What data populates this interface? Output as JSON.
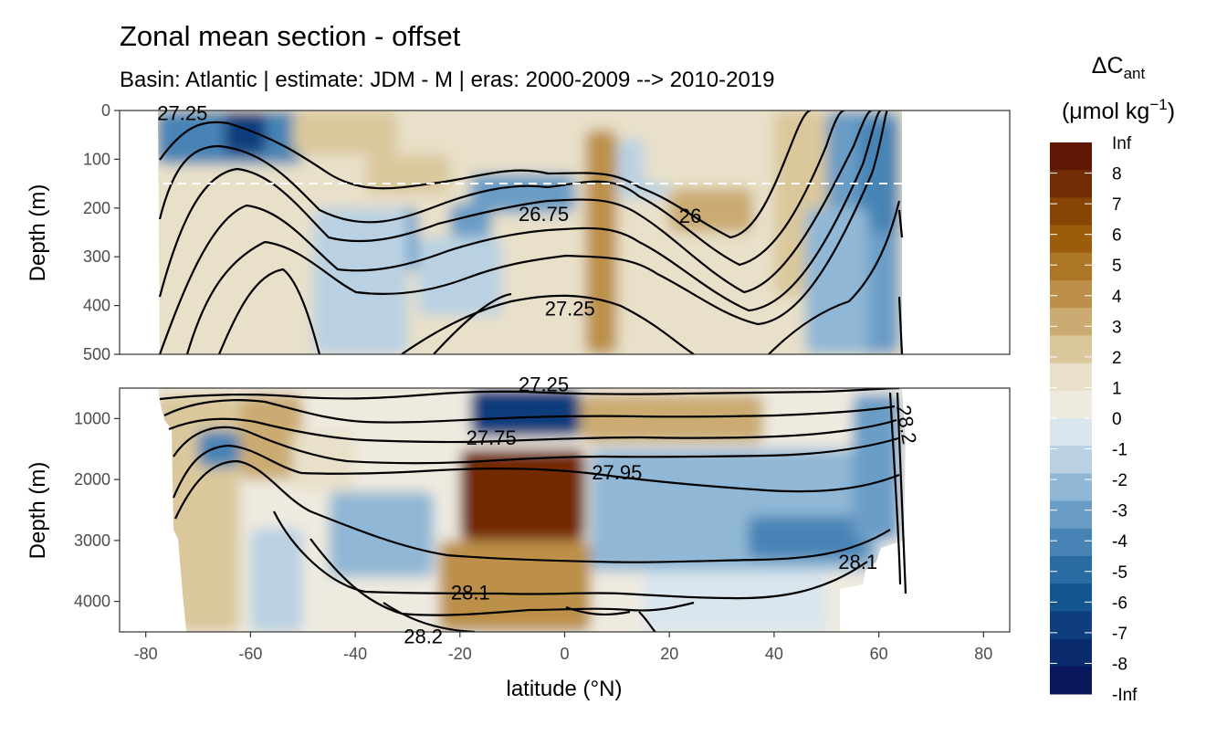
{
  "chart_data": {
    "type": "heatmap",
    "title": "Zonal mean section - offset",
    "subtitle": "Basin: Atlantic | estimate: JDM - M | eras: 2000-2009 --> 2010-2019",
    "xlabel": "latitude (°N)",
    "ylabel": "Depth (m)",
    "xlim": [
      -85,
      85
    ],
    "x_ticks": [
      -80,
      -60,
      -40,
      -20,
      0,
      20,
      40,
      60,
      80
    ],
    "x_tick_labels": [
      "-80",
      "-60",
      "-40",
      "-20",
      "0",
      "20",
      "40",
      "60",
      "80"
    ],
    "panels": [
      {
        "name": "upper",
        "ylim": [
          0,
          500
        ],
        "y_ticks": [
          0,
          100,
          200,
          300,
          400,
          500
        ],
        "y_tick_labels": [
          "0",
          "100",
          "200",
          "300",
          "400",
          "500"
        ],
        "reference_depth": 150,
        "isopycnal_labels": [
          {
            "text": "27.25",
            "lat": -73,
            "depth": 5
          },
          {
            "text": "26.75",
            "lat": -4,
            "depth": 212
          },
          {
            "text": "26",
            "lat": 24,
            "depth": 215
          },
          {
            "text": "27.25",
            "lat": 1,
            "depth": 405
          }
        ]
      },
      {
        "name": "lower",
        "ylim": [
          500,
          4500
        ],
        "y_ticks": [
          1000,
          2000,
          3000,
          4000
        ],
        "y_tick_labels": [
          "1000",
          "2000",
          "3000",
          "4000"
        ],
        "isopycnal_labels": [
          {
            "text": "27.25",
            "lat": -4,
            "depth": 430
          },
          {
            "text": "27.75",
            "lat": -14,
            "depth": 1310
          },
          {
            "text": "27.95",
            "lat": 10,
            "depth": 1880
          },
          {
            "text": "28.1",
            "lat": -18,
            "depth": 3850
          },
          {
            "text": "28.1",
            "lat": 56,
            "depth": 3350
          },
          {
            "text": "28.2",
            "lat": -27,
            "depth": 4570
          },
          {
            "text": "28.2",
            "lat": 64,
            "depth": 1000
          }
        ]
      }
    ],
    "legend": {
      "title": "ΔC",
      "title_sub": "ant",
      "unit": "(μmol kg",
      "unit_sup": "−1",
      "unit_end": ")",
      "labels": [
        "Inf",
        "8",
        "7",
        "6",
        "5",
        "4",
        "3",
        "2",
        "1",
        "0",
        "-1",
        "-2",
        "-3",
        "-4",
        "-5",
        "-6",
        "-7",
        "-8",
        "-Inf"
      ],
      "colors": [
        "#5e1702",
        "#732c05",
        "#874405",
        "#9b5d0b",
        "#ad7626",
        "#bc904a",
        "#cbab72",
        "#dac79c",
        "#e8e0c9",
        "#eeeae0",
        "#d9e6ee",
        "#b9d1e3",
        "#90b7d5",
        "#6a9dc6",
        "#4784b5",
        "#2a6ba3",
        "#14548f",
        "#0e3e7d",
        "#0a2a6e",
        "#08185a"
      ]
    },
    "fields": {
      "upper": [
        {
          "lat0": -78,
          "lat1": -50,
          "d0": 0,
          "d1": 110,
          "value": -5
        },
        {
          "lat0": -65,
          "lat1": -57,
          "d0": 0,
          "d1": 90,
          "value": -8
        },
        {
          "lat0": -52,
          "lat1": -32,
          "d0": 0,
          "d1": 90,
          "value": 2
        },
        {
          "lat0": -38,
          "lat1": -22,
          "d0": 90,
          "d1": 170,
          "value": 2
        },
        {
          "lat0": -22,
          "lat1": 5,
          "d0": 0,
          "d1": 100,
          "value": 1
        },
        {
          "lat0": -18,
          "lat1": 2,
          "d0": 130,
          "d1": 210,
          "value": -4
        },
        {
          "lat0": -22,
          "lat1": -14,
          "d0": 190,
          "d1": 260,
          "value": -4
        },
        {
          "lat0": -42,
          "lat1": -28,
          "d0": 200,
          "d1": 330,
          "value": -4
        },
        {
          "lat0": -48,
          "lat1": -30,
          "d0": 200,
          "d1": 500,
          "value": -2
        },
        {
          "lat0": -28,
          "lat1": -12,
          "d0": 260,
          "d1": 420,
          "value": -2
        },
        {
          "lat0": 4,
          "lat1": 10,
          "d0": 40,
          "d1": 500,
          "value": 4
        },
        {
          "lat0": 10,
          "lat1": 20,
          "d0": 60,
          "d1": 180,
          "value": -2
        },
        {
          "lat0": 20,
          "lat1": 36,
          "d0": 160,
          "d1": 250,
          "value": 3
        },
        {
          "lat0": 15,
          "lat1": 45,
          "d0": 0,
          "d1": 150,
          "value": 1
        },
        {
          "lat0": 40,
          "lat1": 50,
          "d0": 0,
          "d1": 380,
          "value": 2
        },
        {
          "lat0": 50,
          "lat1": 64,
          "d0": 0,
          "d1": 500,
          "value": -4
        },
        {
          "lat0": 56,
          "lat1": 64,
          "d0": 20,
          "d1": 250,
          "value": -5
        },
        {
          "lat0": 46,
          "lat1": 58,
          "d0": 200,
          "d1": 500,
          "value": -3
        },
        {
          "lat0": -78,
          "lat1": -58,
          "d0": 150,
          "d1": 500,
          "value": 1
        }
      ],
      "lower": [
        {
          "lat0": -78,
          "lat1": -62,
          "d0": 600,
          "d1": 4500,
          "value": 2
        },
        {
          "lat0": -70,
          "lat1": -62,
          "d0": 1200,
          "d1": 1800,
          "value": -5
        },
        {
          "lat0": -62,
          "lat1": -50,
          "d0": 600,
          "d1": 2000,
          "value": 3
        },
        {
          "lat0": -52,
          "lat1": -40,
          "d0": 1200,
          "d1": 2200,
          "value": 1
        },
        {
          "lat0": -45,
          "lat1": -25,
          "d0": 2200,
          "d1": 3600,
          "value": -3
        },
        {
          "lat0": -60,
          "lat1": -50,
          "d0": 2800,
          "d1": 4500,
          "value": -2
        },
        {
          "lat0": -18,
          "lat1": 3,
          "d0": 500,
          "d1": 1300,
          "value": -8
        },
        {
          "lat0": -20,
          "lat1": 4,
          "d0": 1500,
          "d1": 3000,
          "value": 8
        },
        {
          "lat0": -24,
          "lat1": 5,
          "d0": 3000,
          "d1": 4500,
          "value": 4
        },
        {
          "lat0": 3,
          "lat1": 38,
          "d0": 600,
          "d1": 1400,
          "value": 3
        },
        {
          "lat0": 5,
          "lat1": 60,
          "d0": 1500,
          "d1": 3500,
          "value": -3
        },
        {
          "lat0": 35,
          "lat1": 58,
          "d0": 2600,
          "d1": 3300,
          "value": -5
        },
        {
          "lat0": 15,
          "lat1": 50,
          "d0": 3500,
          "d1": 4500,
          "value": -1
        },
        {
          "lat0": 55,
          "lat1": 64,
          "d0": 600,
          "d1": 3000,
          "value": -4
        }
      ]
    }
  }
}
